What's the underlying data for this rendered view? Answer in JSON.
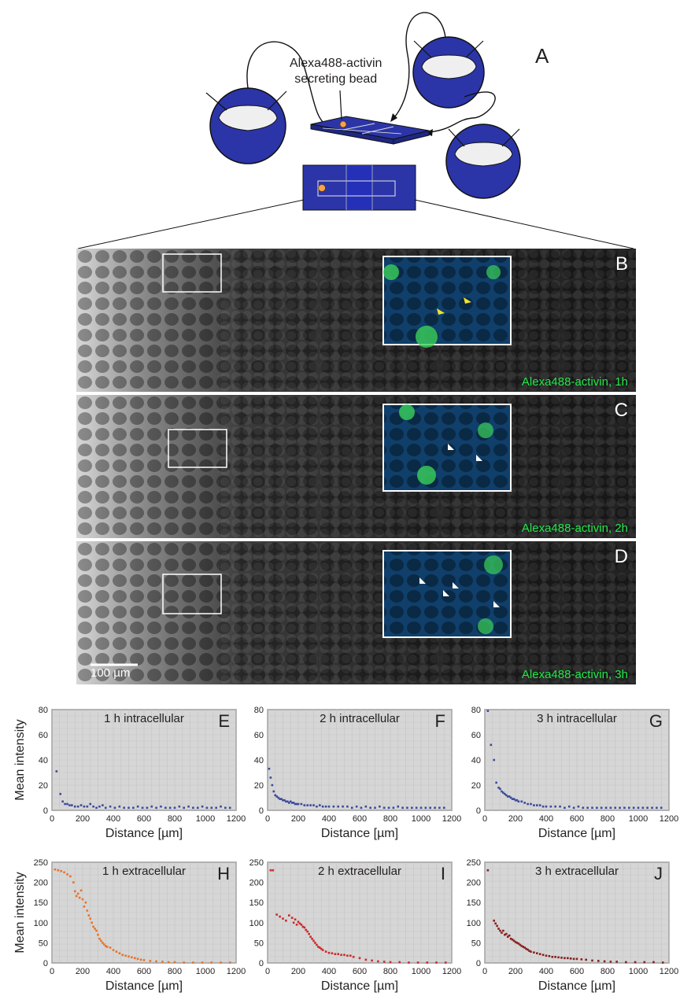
{
  "panel_labels": [
    "A",
    "B",
    "C",
    "D",
    "E",
    "F",
    "G",
    "H",
    "I",
    "J"
  ],
  "schematic": {
    "bead_label_line1": "Alexa488-activin",
    "bead_label_line2": "secreting bead",
    "colors": {
      "embryo_blue": "#2b35a8",
      "bead_orange": "#f6a44c"
    }
  },
  "micrographs": [
    {
      "letter": "B",
      "caption": "Alexa488-activin, 1h",
      "arrow_color": "#f5e12a"
    },
    {
      "letter": "C",
      "caption": "Alexa488-activin, 2h",
      "arrow_color": "#ffffff"
    },
    {
      "letter": "D",
      "caption": "Alexa488-activin, 3h",
      "arrow_color": "#ffffff"
    }
  ],
  "scalebar_label": "100 µm",
  "chart_data": [
    {
      "type": "scatter",
      "panel": "E",
      "title": "1 h intracellular",
      "xlabel": "Distance [µm]",
      "ylabel": "Mean intensity",
      "xlim": [
        0,
        1200
      ],
      "ylim": [
        0,
        80
      ],
      "xticks": [
        0,
        200,
        400,
        600,
        800,
        1000,
        1200
      ],
      "yticks": [
        0,
        20,
        40,
        60,
        80
      ],
      "grid": true,
      "color": "#3a4a9c",
      "series": [
        {
          "x": [
            30,
            55,
            70,
            85,
            100,
            115,
            130,
            150,
            170,
            190,
            210,
            230,
            250,
            270,
            290,
            310,
            330,
            350,
            380,
            410,
            440,
            470,
            500,
            530,
            560,
            590,
            620,
            650,
            680,
            710,
            740,
            770,
            800,
            830,
            860,
            890,
            920,
            950,
            980,
            1010,
            1040,
            1070,
            1100,
            1130,
            1160
          ],
          "y": [
            31,
            13,
            7,
            5,
            5,
            4,
            4,
            3,
            3,
            4,
            3,
            3,
            5,
            3,
            2,
            3,
            4,
            2,
            3,
            2,
            3,
            2,
            2,
            2,
            3,
            2,
            2,
            3,
            2,
            3,
            2,
            2,
            2,
            3,
            2,
            3,
            2,
            2,
            3,
            2,
            2,
            2,
            3,
            2,
            2
          ]
        }
      ]
    },
    {
      "type": "scatter",
      "panel": "F",
      "title": "2 h intracellular",
      "xlabel": "Distance [µm]",
      "ylabel": "Mean intensity",
      "xlim": [
        0,
        1200
      ],
      "ylim": [
        0,
        80
      ],
      "xticks": [
        0,
        200,
        400,
        600,
        800,
        1000,
        1200
      ],
      "yticks": [
        0,
        20,
        40,
        60,
        80
      ],
      "grid": true,
      "color": "#3a4a9c",
      "series": [
        {
          "x": [
            10,
            20,
            30,
            40,
            50,
            60,
            70,
            80,
            90,
            100,
            110,
            120,
            130,
            140,
            150,
            160,
            170,
            180,
            190,
            200,
            220,
            240,
            260,
            280,
            300,
            320,
            340,
            360,
            380,
            400,
            430,
            460,
            490,
            520,
            550,
            580,
            610,
            640,
            670,
            700,
            730,
            760,
            790,
            820,
            850,
            880,
            910,
            940,
            970,
            1000,
            1030,
            1060,
            1090,
            1120,
            1150
          ],
          "y": [
            33,
            26,
            20,
            15,
            12,
            11,
            10,
            9,
            9,
            8,
            8,
            7,
            7,
            6,
            7,
            6,
            6,
            5,
            5,
            5,
            5,
            4,
            4,
            4,
            4,
            3,
            4,
            3,
            3,
            3,
            3,
            3,
            3,
            3,
            2,
            3,
            2,
            3,
            2,
            2,
            3,
            2,
            2,
            2,
            3,
            2,
            2,
            2,
            2,
            2,
            2,
            2,
            2,
            2,
            2
          ]
        }
      ]
    },
    {
      "type": "scatter",
      "panel": "G",
      "title": "3 h intracellular",
      "xlabel": "Distance [µm]",
      "ylabel": "Mean intensity",
      "xlim": [
        0,
        1200
      ],
      "ylim": [
        0,
        80
      ],
      "xticks": [
        0,
        200,
        400,
        600,
        800,
        1000,
        1200
      ],
      "yticks": [
        0,
        20,
        40,
        60,
        80
      ],
      "grid": true,
      "color": "#3a4a9c",
      "series": [
        {
          "x": [
            20,
            40,
            60,
            75,
            90,
            100,
            110,
            120,
            130,
            140,
            150,
            160,
            170,
            180,
            190,
            200,
            210,
            220,
            240,
            260,
            280,
            300,
            320,
            340,
            360,
            380,
            400,
            430,
            460,
            490,
            520,
            550,
            580,
            610,
            640,
            670,
            700,
            730,
            760,
            790,
            820,
            850,
            880,
            910,
            940,
            970,
            1000,
            1030,
            1060,
            1090,
            1120,
            1150
          ],
          "y": [
            79,
            52,
            40,
            22,
            18,
            17,
            15,
            14,
            13,
            12,
            11,
            11,
            10,
            9,
            9,
            8,
            8,
            7,
            7,
            6,
            5,
            5,
            4,
            4,
            4,
            3,
            3,
            3,
            3,
            3,
            2,
            3,
            2,
            3,
            2,
            2,
            2,
            2,
            2,
            2,
            2,
            2,
            2,
            2,
            2,
            2,
            2,
            2,
            2,
            2,
            2,
            2
          ]
        }
      ]
    },
    {
      "type": "scatter",
      "panel": "H",
      "title": "1 h extracellular",
      "xlabel": "Distance [µm]",
      "ylabel": "Mean intensity",
      "xlim": [
        0,
        1200
      ],
      "ylim": [
        0,
        250
      ],
      "xticks": [
        0,
        200,
        400,
        600,
        800,
        1000,
        1200
      ],
      "yticks": [
        0,
        50,
        100,
        150,
        200,
        250
      ],
      "grid": true,
      "color": "#e8742a",
      "series": [
        {
          "x": [
            20,
            40,
            60,
            80,
            100,
            120,
            140,
            150,
            160,
            170,
            180,
            190,
            200,
            210,
            220,
            230,
            240,
            250,
            260,
            270,
            280,
            290,
            300,
            310,
            320,
            330,
            340,
            350,
            360,
            380,
            400,
            420,
            440,
            460,
            480,
            500,
            520,
            540,
            560,
            580,
            600,
            640,
            680,
            720,
            760,
            800,
            860,
            920,
            980,
            1040,
            1100,
            1160
          ],
          "y": [
            232,
            230,
            228,
            225,
            220,
            215,
            200,
            178,
            166,
            172,
            162,
            180,
            158,
            140,
            150,
            130,
            118,
            110,
            100,
            90,
            85,
            80,
            70,
            60,
            55,
            50,
            46,
            42,
            40,
            38,
            32,
            28,
            24,
            20,
            18,
            16,
            14,
            12,
            10,
            8,
            7,
            5,
            4,
            3,
            2,
            2,
            1,
            1,
            1,
            1,
            1,
            1
          ]
        }
      ]
    },
    {
      "type": "scatter",
      "panel": "I",
      "title": "2 h extracellular",
      "xlabel": "Distance [µm]",
      "ylabel": "Mean intensity",
      "xlim": [
        0,
        1200
      ],
      "ylim": [
        0,
        250
      ],
      "xticks": [
        0,
        200,
        400,
        600,
        800,
        1000,
        1200
      ],
      "yticks": [
        0,
        50,
        100,
        150,
        200,
        250
      ],
      "grid": true,
      "color": "#cc2a2a",
      "series": [
        {
          "x": [
            20,
            35,
            60,
            80,
            100,
            120,
            140,
            160,
            170,
            180,
            190,
            200,
            210,
            220,
            230,
            240,
            250,
            260,
            270,
            280,
            290,
            300,
            310,
            320,
            330,
            340,
            350,
            360,
            380,
            400,
            420,
            440,
            460,
            480,
            500,
            520,
            540,
            560,
            600,
            640,
            680,
            720,
            760,
            800,
            860,
            920,
            980,
            1040,
            1100,
            1160
          ],
          "y": [
            230,
            230,
            120,
            115,
            110,
            105,
            118,
            112,
            100,
            108,
            95,
            102,
            98,
            95,
            90,
            88,
            82,
            78,
            72,
            65,
            60,
            55,
            50,
            45,
            40,
            38,
            35,
            32,
            28,
            25,
            24,
            22,
            22,
            20,
            20,
            18,
            18,
            15,
            12,
            8,
            6,
            4,
            3,
            2,
            2,
            1,
            1,
            1,
            1,
            1
          ]
        }
      ]
    },
    {
      "type": "scatter",
      "panel": "J",
      "title": "3 h extracellular",
      "xlabel": "Distance [µm]",
      "ylabel": "Mean intensity",
      "xlim": [
        0,
        1200
      ],
      "ylim": [
        0,
        250
      ],
      "xticks": [
        0,
        200,
        400,
        600,
        800,
        1000,
        1200
      ],
      "yticks": [
        0,
        50,
        100,
        150,
        200,
        250
      ],
      "grid": true,
      "color": "#8a1f1f",
      "series": [
        {
          "x": [
            20,
            60,
            70,
            80,
            90,
            100,
            110,
            120,
            130,
            140,
            150,
            160,
            170,
            180,
            190,
            200,
            210,
            220,
            230,
            240,
            250,
            260,
            270,
            280,
            290,
            300,
            320,
            340,
            360,
            380,
            400,
            420,
            440,
            460,
            480,
            500,
            520,
            540,
            560,
            580,
            600,
            630,
            660,
            700,
            740,
            780,
            820,
            860,
            920,
            980,
            1040,
            1100,
            1160
          ],
          "y": [
            230,
            105,
            98,
            92,
            85,
            80,
            75,
            80,
            70,
            72,
            65,
            68,
            60,
            58,
            55,
            52,
            50,
            48,
            45,
            42,
            40,
            38,
            35,
            33,
            30,
            28,
            26,
            24,
            22,
            20,
            18,
            17,
            15,
            15,
            14,
            13,
            12,
            12,
            11,
            10,
            10,
            9,
            8,
            6,
            5,
            4,
            3,
            3,
            2,
            2,
            2,
            2,
            1
          ]
        }
      ]
    }
  ]
}
